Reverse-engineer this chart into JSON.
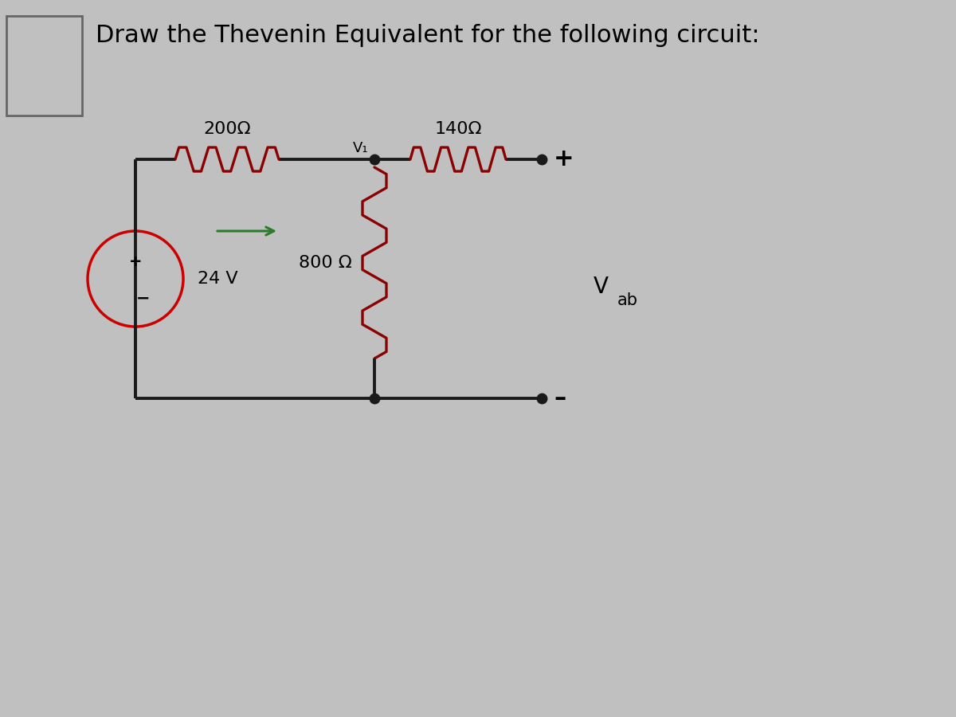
{
  "title": "Draw the Thevenin Equivalent for the following circuit:",
  "title_fontsize": 22,
  "bg_color": "#c0c0c0",
  "resistor_color": "#8B0000",
  "wire_color": "#1a1a1a",
  "source_color": "#cc0000",
  "arrow_color": "#2d7a2d",
  "resistor_200_label": "200Ω",
  "resistor_140_label": "140Ω",
  "resistor_800_label": "800 Ω",
  "source_label": "24 V",
  "node_label": "V₁",
  "plus_label": "+",
  "minus_label": "–",
  "vab_label": "V",
  "vab_sub": "ab"
}
